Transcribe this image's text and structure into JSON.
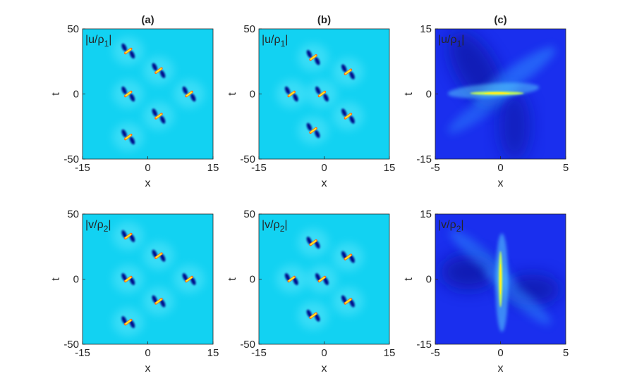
{
  "chart_data": {
    "type": "heatmap",
    "columns": [
      {
        "title": "(a)",
        "xlim": [
          -15,
          15
        ],
        "ylim": [
          -50,
          50
        ],
        "xticks": [
          -15,
          0,
          15
        ],
        "yticks": [
          50,
          0,
          -50
        ],
        "peaks": [
          [
            -4.5,
            33
          ],
          [
            2.5,
            18
          ],
          [
            -4.5,
            0
          ],
          [
            9.5,
            0
          ],
          [
            2.5,
            -17
          ],
          [
            -4.5,
            -33
          ]
        ]
      },
      {
        "title": "(b)",
        "xlim": [
          -15,
          15
        ],
        "ylim": [
          -50,
          50
        ],
        "xticks": [
          -15,
          0,
          15
        ],
        "yticks": [
          50,
          0,
          -50
        ],
        "peaks": [
          [
            -2.5,
            28
          ],
          [
            5.5,
            17
          ],
          [
            -7.5,
            0
          ],
          [
            -0.5,
            0
          ],
          [
            5.5,
            -17
          ],
          [
            -2.5,
            -28
          ]
        ]
      },
      {
        "title": "(c)",
        "xlim": [
          -5,
          5
        ],
        "ylim": [
          -15,
          15
        ],
        "xticks": [
          -5,
          0,
          5
        ],
        "yticks": [
          15,
          0,
          -15
        ],
        "peaks": [
          [
            0,
            0
          ]
        ]
      }
    ],
    "rows": [
      {
        "component": "u",
        "var": "u",
        "sub": "1",
        "xlabel": "x",
        "ylabel": "t"
      },
      {
        "component": "v",
        "var": "v",
        "sub": "2",
        "xlabel": "x",
        "ylabel": "t"
      }
    ],
    "colors": {
      "background_ab": "#12d2f2",
      "background_c": "#1a2fee",
      "hot": "#ffee22",
      "hot_edge": "#ff6a1a",
      "dark": "#000a8c",
      "glow": "#7ff0ff"
    }
  }
}
